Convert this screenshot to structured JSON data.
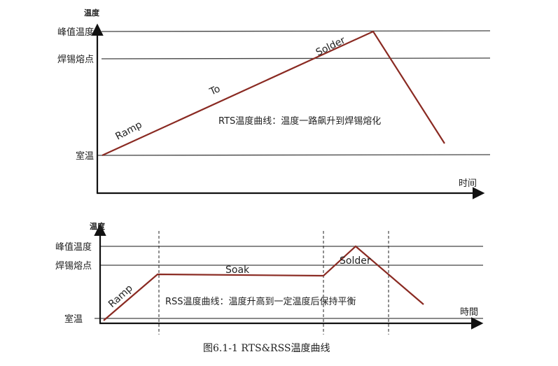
{
  "rts": {
    "y_axis_label": "温度",
    "x_axis_label": "时间",
    "levels": {
      "peak": "峰值温度",
      "melt": "焊锡熔点",
      "room": "室温"
    },
    "segment_labels": {
      "ramp": "Ramp",
      "to": "To",
      "solder": "Solder"
    },
    "description": "RTS温度曲线：温度一路飙升到焊锡熔化",
    "curve_color": "#8a2a22"
  },
  "rss": {
    "y_axis_label": "温度",
    "x_axis_label": "時間",
    "levels": {
      "peak": "峰值温度",
      "melt": "焊锡熔点",
      "room": "室温"
    },
    "segment_labels": {
      "ramp": "Ramp",
      "soak": "Soak",
      "solder": "Solder"
    },
    "description": "RSS温度曲线：温度升高到一定温度后保持平衡",
    "curve_color": "#8a2a22"
  },
  "figure_caption": "图6.1-1 RTS&RSS温度曲线"
}
